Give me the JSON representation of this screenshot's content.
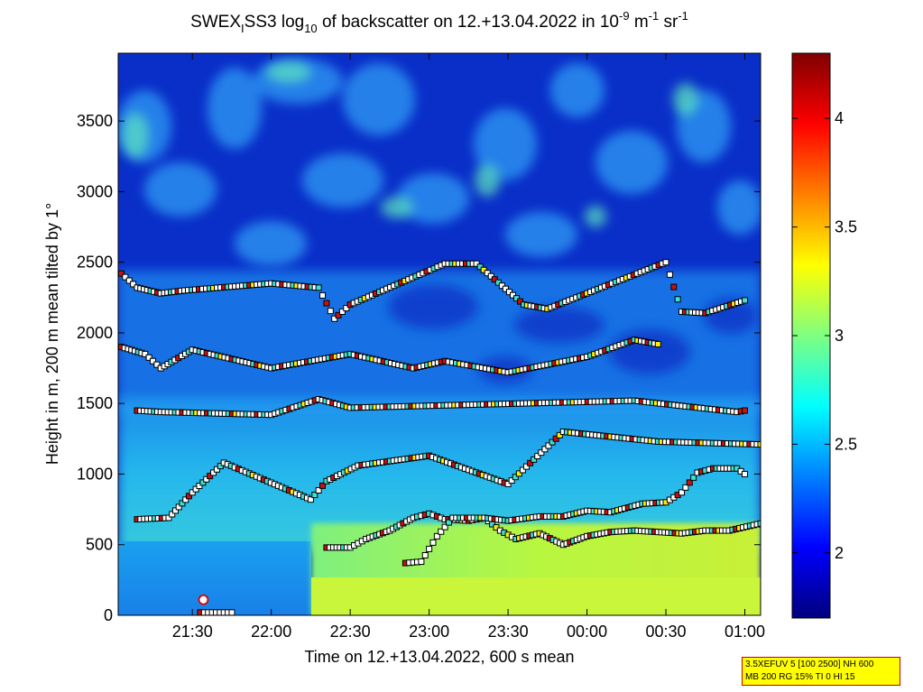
{
  "chart_data": {
    "type": "heatmap",
    "title": "SWEX_I SS3 log_10 of backscatter on 12.+13.04.2022 in 10^-9 m^-1 sr^-1",
    "title_parts": {
      "a": "SWEX",
      "a_sub": "I",
      "b": "SS3 log",
      "b_sub": "10",
      "c": " of backscatter on 12.+13.04.2022 in 10",
      "c_sup": "-9",
      "d": " m",
      "d_sup": "-1",
      "e": " sr",
      "e_sup": "-1"
    },
    "xlabel": "Time on 12.+13.04.2022, 600 s mean",
    "ylabel": "Height in m, 200 m mean tilted by 1°",
    "x_tick_labels": [
      "21:30",
      "22:00",
      "22:30",
      "23:00",
      "23:30",
      "00:00",
      "00:30",
      "01:00"
    ],
    "x_tick_hours": [
      21.5,
      22.0,
      22.5,
      23.0,
      23.5,
      24.0,
      24.5,
      25.0
    ],
    "xlim_hours": [
      21.03,
      25.1
    ],
    "y_ticks": [
      0,
      500,
      1000,
      1500,
      2000,
      2500,
      3000,
      3500
    ],
    "ylim": [
      0,
      3980
    ],
    "colorbar": {
      "range": [
        1.7,
        4.3
      ],
      "ticks": [
        2,
        2.5,
        3,
        3.5,
        4
      ],
      "tick_labels": [
        "2",
        "2.5",
        "3",
        "3.5",
        "4"
      ],
      "colormap": "jet"
    },
    "regions": [
      {
        "name": "low-signal lower layer before 22:15",
        "time_range_hours": [
          21.03,
          22.25
        ],
        "height_range": [
          0,
          400
        ],
        "value": 2.3
      },
      {
        "name": "lower mixed layer after 22:15",
        "time_range_hours": [
          22.25,
          25.1
        ],
        "height_range": [
          0,
          500
        ],
        "value": 3.2
      },
      {
        "name": "aerosol layer",
        "time_range_hours": [
          21.03,
          25.1
        ],
        "height_range": [
          500,
          1500
        ],
        "value": 2.7
      },
      {
        "name": "upper patchy layer",
        "time_range_hours": [
          21.03,
          25.1
        ],
        "height_range": [
          1500,
          3980
        ],
        "value": 2.0
      }
    ],
    "series": [
      {
        "marker": "square",
        "note": "mixing layer height (lower)",
        "points": [
          [
            22.35,
            480
          ],
          [
            22.5,
            480
          ],
          [
            22.6,
            540
          ],
          [
            22.75,
            600
          ],
          [
            22.9,
            690
          ],
          [
            23.0,
            720
          ],
          [
            23.1,
            680
          ],
          [
            23.25,
            670
          ],
          [
            23.35,
            690
          ],
          [
            23.45,
            600
          ],
          [
            23.55,
            540
          ],
          [
            23.7,
            580
          ],
          [
            23.85,
            500
          ],
          [
            24.0,
            560
          ],
          [
            24.15,
            590
          ],
          [
            24.3,
            600
          ],
          [
            24.45,
            590
          ],
          [
            24.6,
            580
          ],
          [
            24.75,
            600
          ],
          [
            24.9,
            600
          ],
          [
            25.1,
            650
          ]
        ]
      },
      {
        "marker": "square",
        "note": "upper layer height",
        "points": [
          [
            22.85,
            370
          ],
          [
            22.95,
            380
          ],
          [
            23.05,
            560
          ],
          [
            23.15,
            690
          ],
          [
            23.35,
            690
          ],
          [
            23.5,
            670
          ],
          [
            23.7,
            700
          ],
          [
            23.85,
            700
          ],
          [
            24.0,
            740
          ],
          [
            24.15,
            730
          ],
          [
            24.35,
            790
          ],
          [
            24.5,
            800
          ],
          [
            24.6,
            870
          ],
          [
            24.7,
            1010
          ],
          [
            24.8,
            1040
          ],
          [
            24.95,
            1040
          ],
          [
            25.0,
            1000
          ]
        ]
      },
      {
        "marker": "square",
        "note": "cloud base near 2300 m",
        "points": [
          [
            21.05,
            2420
          ],
          [
            21.15,
            2320
          ],
          [
            21.3,
            2280
          ],
          [
            21.45,
            2300
          ],
          [
            22.0,
            2350
          ],
          [
            22.3,
            2320
          ],
          [
            22.4,
            2100
          ],
          [
            22.5,
            2200
          ],
          [
            23.1,
            2490
          ],
          [
            23.3,
            2490
          ],
          [
            23.6,
            2200
          ],
          [
            23.75,
            2170
          ],
          [
            24.5,
            2500
          ],
          [
            24.6,
            2150
          ],
          [
            24.75,
            2140
          ],
          [
            25.0,
            2230
          ]
        ]
      },
      {
        "marker": "square",
        "note": "layer near 1800 m",
        "points": [
          [
            21.05,
            1900
          ],
          [
            21.2,
            1850
          ],
          [
            21.3,
            1750
          ],
          [
            21.5,
            1880
          ],
          [
            22.0,
            1750
          ],
          [
            22.5,
            1850
          ],
          [
            22.9,
            1750
          ],
          [
            23.1,
            1800
          ],
          [
            23.5,
            1720
          ],
          [
            24.0,
            1830
          ],
          [
            24.3,
            1950
          ],
          [
            24.45,
            1920
          ]
        ]
      },
      {
        "marker": "square",
        "note": "layer near 1450 m",
        "points": [
          [
            21.15,
            1450
          ],
          [
            21.3,
            1440
          ],
          [
            22.0,
            1420
          ],
          [
            22.3,
            1530
          ],
          [
            22.5,
            1470
          ],
          [
            24.3,
            1520
          ],
          [
            24.95,
            1440
          ],
          [
            25.0,
            1450
          ]
        ]
      },
      {
        "marker": "square",
        "note": "scattered points",
        "points": [
          [
            21.15,
            680
          ],
          [
            21.35,
            690
          ],
          [
            21.5,
            870
          ],
          [
            21.7,
            1080
          ],
          [
            22.25,
            820
          ],
          [
            22.35,
            950
          ],
          [
            22.55,
            1060
          ],
          [
            23.0,
            1130
          ],
          [
            23.5,
            930
          ],
          [
            23.85,
            1300
          ],
          [
            24.45,
            1230
          ],
          [
            25.1,
            1210
          ]
        ]
      },
      {
        "marker": "square",
        "note": "near-ground points",
        "points": [
          [
            21.55,
            20
          ],
          [
            21.65,
            20
          ],
          [
            21.75,
            20
          ]
        ]
      },
      {
        "marker": "circle",
        "note": "circle marker",
        "points": [
          [
            21.57,
            110
          ]
        ]
      }
    ]
  },
  "info_box": {
    "line1": "3.5XEFUV 5 [100 2500] NH 600",
    "line2": "MB 200 RG 15% TI 0 HI 15"
  }
}
